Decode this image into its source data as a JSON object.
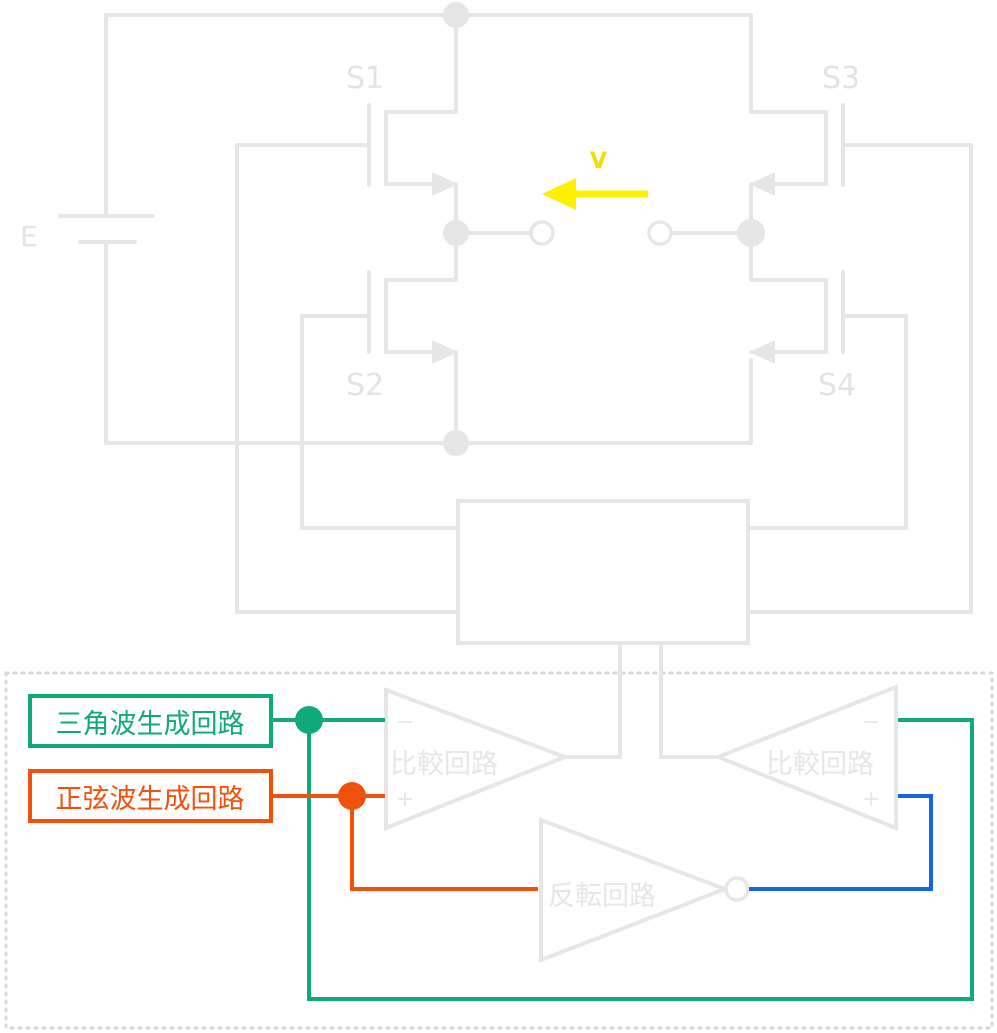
{
  "bridge": {
    "battery_label": "E",
    "switches": [
      {
        "id": "s1",
        "label": "S1"
      },
      {
        "id": "s2",
        "label": "S2"
      },
      {
        "id": "s3",
        "label": "S3"
      },
      {
        "id": "s4",
        "label": "S4"
      }
    ],
    "velocity_label": "V"
  },
  "control": {
    "comparator_left_label": "比較回路",
    "comparator_right_label": "比較回路",
    "inverter_label": "反転回路",
    "minus_sign": "−",
    "plus_sign": "+",
    "triangle_generator_label": "三角波生成回路",
    "sine_generator_label": "正弦波生成回路"
  },
  "colors": {
    "faded_gray": "#e6e6e6",
    "triangle_wire": "#10a97b",
    "sine_wire": "#f0520e",
    "inverted_wire": "#1466e6",
    "velocity_arrow": "#fff000",
    "dotted_border": "#d9d9d9"
  }
}
